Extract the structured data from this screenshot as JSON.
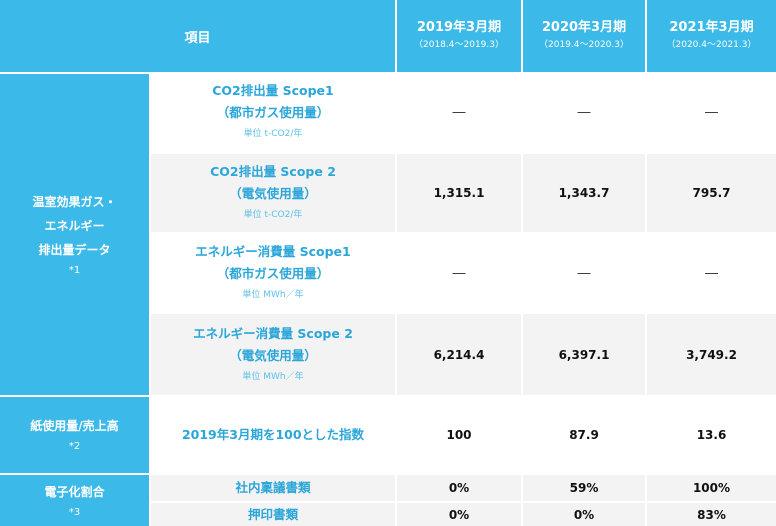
{
  "header": {
    "item_label": "項目",
    "years": [
      {
        "label": "2019年3月期",
        "range": "（2018.4～2019.3）"
      },
      {
        "label": "2020年3月期",
        "range": "（2019.4～2020.3）"
      },
      {
        "label": "2021年3月期",
        "range": "（2020.4～2021.3）"
      }
    ]
  },
  "groups": {
    "ghg": {
      "line1": "温室効果ガス・",
      "line2": "エネルギー",
      "line3": "排出量データ",
      "note": "*1"
    },
    "paper": {
      "line1": "紙使用量/売上高",
      "note": "*2"
    },
    "digital": {
      "line1": "電子化割合",
      "note": "*3"
    }
  },
  "rows": [
    {
      "line1": "CO2排出量 Scope1",
      "line2": "（都市ガス使用量）",
      "unit": "単位 t-CO2/年",
      "values": [
        "―",
        "―",
        "―"
      ]
    },
    {
      "line1": "CO2排出量 Scope 2",
      "line2": "（電気使用量）",
      "unit": "単位 t-CO2/年",
      "values": [
        "1,315.1",
        "1,343.7",
        "795.7"
      ]
    },
    {
      "line1": "エネルギー消費量 Scope1",
      "line2": "（都市ガス使用量）",
      "unit": "単位 MWh／年",
      "values": [
        "―",
        "―",
        "―"
      ]
    },
    {
      "line1": "エネルギー消費量 Scope 2",
      "line2": "（電気使用量）",
      "unit": "単位 MWh／年",
      "values": [
        "6,214.4",
        "6,397.1",
        "3,749.2"
      ]
    },
    {
      "line1": "2019年3月期を100とした指数",
      "values": [
        "100",
        "87.9",
        "13.6"
      ]
    },
    {
      "line1": "社内稟議書類",
      "values": [
        "0%",
        "59%",
        "100%"
      ]
    },
    {
      "line1": "押印書類",
      "values": [
        "0%",
        "0%",
        "83%"
      ]
    }
  ]
}
